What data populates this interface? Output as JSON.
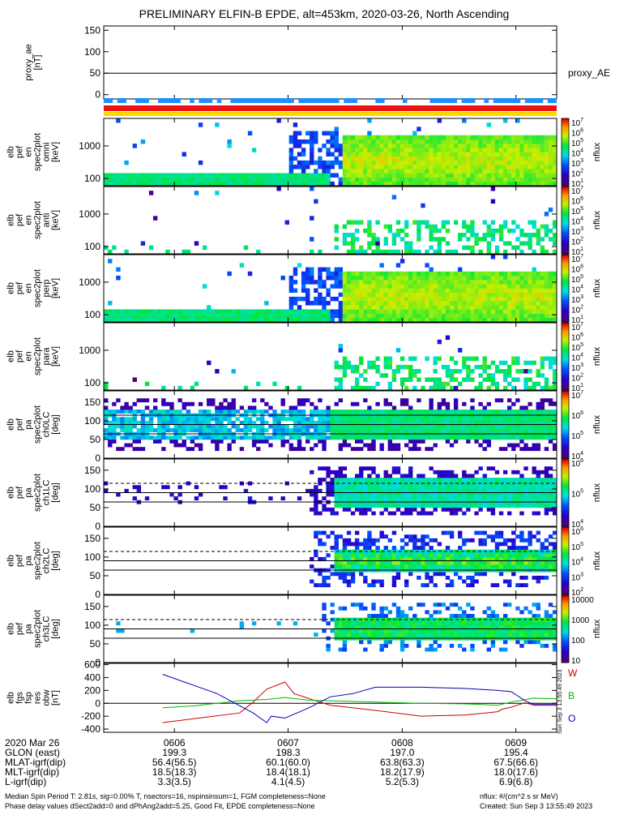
{
  "title": "PRELIMINARY ELFIN-B EPDE, alt=453km, 2020-03-26, North Ascending",
  "colors": {
    "blue_bar": "#1e90ff",
    "red_bar": "#ee1111",
    "yellow_bar": "#ffd700"
  },
  "chart_data": [
    {
      "id": "proxy_ae",
      "type": "line",
      "ylabel_lines": [
        "proxy_ae",
        "[nT]"
      ],
      "ylim": [
        -10,
        160
      ],
      "yticks": [
        "150",
        "100",
        "50",
        "0"
      ],
      "ytick_values": [
        150,
        100,
        50,
        0
      ],
      "refline": 50,
      "legend": "proxy_AE",
      "series": [
        {
          "name": "proxy_AE",
          "x": [
            0,
            1
          ],
          "y": [
            50,
            50
          ]
        }
      ]
    },
    {
      "id": "en_full",
      "type": "heatmap",
      "ylabel_lines": [
        "elb",
        "pef",
        "en",
        "spec2plot",
        "omni",
        "[keV]"
      ],
      "yscale": "log",
      "ylim": [
        60,
        7000
      ],
      "yticks": [
        "1000",
        "100"
      ],
      "ytick_values": [
        1000,
        100
      ],
      "cbar": {
        "label": "nflux",
        "scale": "log",
        "ticks": [
          "10",
          "10",
          "10",
          "10",
          "10",
          "10",
          "10"
        ],
        "exps": [
          "7",
          "6",
          "5",
          "4",
          "3",
          "2",
          "1"
        ]
      },
      "pattern": "strong"
    },
    {
      "id": "en_anti",
      "type": "heatmap",
      "ylabel_lines": [
        "elb",
        "pef",
        "en",
        "spec2plot",
        "anti",
        "[keV]"
      ],
      "yscale": "log",
      "ylim": [
        60,
        7000
      ],
      "yticks": [
        "1000",
        "100"
      ],
      "ytick_values": [
        1000,
        100
      ],
      "cbar": {
        "label": "nflux",
        "scale": "log",
        "ticks": [
          "10",
          "10",
          "10",
          "10",
          "10",
          "10",
          "10"
        ],
        "exps": [
          "7",
          "6",
          "5",
          "4",
          "3",
          "2",
          "1"
        ]
      },
      "pattern": "sparse"
    },
    {
      "id": "en_perp",
      "type": "heatmap",
      "ylabel_lines": [
        "elb",
        "pef",
        "en",
        "spec2plot",
        "perp",
        "[keV]"
      ],
      "yscale": "log",
      "ylim": [
        60,
        7000
      ],
      "yticks": [
        "1000",
        "100"
      ],
      "ytick_values": [
        1000,
        100
      ],
      "cbar": {
        "label": "nflux",
        "scale": "log",
        "ticks": [
          "10",
          "10",
          "10",
          "10",
          "10",
          "10",
          "10"
        ],
        "exps": [
          "7",
          "6",
          "5",
          "4",
          "3",
          "2",
          "1"
        ]
      },
      "pattern": "strong"
    },
    {
      "id": "en_para",
      "type": "heatmap",
      "ylabel_lines": [
        "elb",
        "pef",
        "en",
        "spec2plot",
        "para",
        "[keV]"
      ],
      "yscale": "log",
      "ylim": [
        60,
        7000
      ],
      "yticks": [
        "1000",
        "100"
      ],
      "ytick_values": [
        1000,
        100
      ],
      "cbar": {
        "label": "nflux",
        "scale": "log",
        "ticks": [
          "10",
          "10",
          "10",
          "10",
          "10",
          "10",
          "10"
        ],
        "exps": [
          "7",
          "6",
          "5",
          "4",
          "3",
          "2",
          "1"
        ]
      },
      "pattern": "sparse"
    },
    {
      "id": "pa_ch0",
      "type": "heatmap",
      "ylabel_lines": [
        "elb",
        "pef",
        "pa",
        "spec2plot",
        "ch0LC",
        "[deg]"
      ],
      "ylim": [
        0,
        180
      ],
      "yticks": [
        "150",
        "100",
        "50",
        "0"
      ],
      "ytick_values": [
        150,
        100,
        50,
        0
      ],
      "cbar": {
        "label": "nflux",
        "scale": "log",
        "ticks": [
          "10",
          "10",
          "10",
          "10"
        ],
        "exps": [
          "7",
          "6",
          "5",
          "4"
        ]
      },
      "lines": [
        {
          "y": 90,
          "style": "solid"
        },
        {
          "y": 65,
          "style": "solid"
        },
        {
          "y": 115,
          "style": "solid"
        }
      ],
      "pattern": "pa0"
    },
    {
      "id": "pa_ch1",
      "type": "heatmap",
      "ylabel_lines": [
        "elb",
        "pef",
        "pa",
        "spec2plot",
        "ch1LC",
        "[deg]"
      ],
      "ylim": [
        0,
        180
      ],
      "yticks": [
        "150",
        "100",
        "50",
        "0"
      ],
      "ytick_values": [
        150,
        100,
        50,
        0
      ],
      "cbar": {
        "label": "nflux",
        "scale": "log",
        "ticks": [
          "10",
          "10",
          "10"
        ],
        "exps": [
          "6",
          "5",
          "4"
        ]
      },
      "lines": [
        {
          "y": 90,
          "style": "solid"
        },
        {
          "y": 65,
          "style": "solid"
        },
        {
          "y": 115,
          "style": "dashed"
        }
      ],
      "pattern": "pa1"
    },
    {
      "id": "pa_ch2",
      "type": "heatmap",
      "ylabel_lines": [
        "elb",
        "pef",
        "pa",
        "spec2plot",
        "ch2LC",
        "[deg]"
      ],
      "ylim": [
        0,
        180
      ],
      "yticks": [
        "150",
        "100",
        "50",
        "0"
      ],
      "ytick_values": [
        150,
        100,
        50,
        0
      ],
      "cbar": {
        "label": "nflux",
        "scale": "log",
        "ticks": [
          "10",
          "10",
          "10",
          "10",
          "10"
        ],
        "exps": [
          "6",
          "5",
          "4",
          "3",
          "2"
        ]
      },
      "lines": [
        {
          "y": 90,
          "style": "solid"
        },
        {
          "y": 65,
          "style": "solid"
        },
        {
          "y": 115,
          "style": "dashed"
        }
      ],
      "pattern": "pa2"
    },
    {
      "id": "pa_ch3",
      "type": "heatmap",
      "ylabel_lines": [
        "elb",
        "pef",
        "pa",
        "spec2plot",
        "ch3LC",
        "[deg]"
      ],
      "ylim": [
        0,
        180
      ],
      "yticks": [
        "150",
        "100",
        "50",
        "0"
      ],
      "ytick_values": [
        150,
        100,
        50,
        0
      ],
      "cbar": {
        "label": "nflux",
        "scale": "linear-labels",
        "ticks": [
          "10000",
          "1000",
          "100",
          "10"
        ],
        "exps": [
          "",
          "",
          "",
          ""
        ]
      },
      "lines": [
        {
          "y": 90,
          "style": "solid"
        },
        {
          "y": 65,
          "style": "solid"
        },
        {
          "y": 115,
          "style": "dashed"
        }
      ],
      "pattern": "pa3"
    },
    {
      "id": "fgs",
      "type": "line",
      "ylabel_lines": [
        "elb",
        "fgs",
        "fsp",
        "res",
        "obw",
        "[nT]"
      ],
      "ylim": [
        -450,
        620
      ],
      "yticks": [
        "600",
        "400",
        "200",
        "0",
        "-200",
        "-400"
      ],
      "ytick_values": [
        600,
        400,
        200,
        0,
        -200,
        -400
      ],
      "refline": 0,
      "series": [
        {
          "name": "W",
          "color": "#d00000",
          "x": [
            0.13,
            0.3,
            0.33,
            0.36,
            0.4,
            0.42,
            0.45,
            0.5,
            0.6,
            0.7,
            0.8,
            0.87,
            0.88,
            0.9,
            0.93,
            0.95,
            1.0
          ],
          "y": [
            -300,
            -150,
            20,
            220,
            330,
            150,
            80,
            -30,
            -110,
            -200,
            -180,
            -130,
            -90,
            -60,
            10,
            -30,
            -30
          ]
        },
        {
          "name": "B",
          "color": "#00bb00",
          "x": [
            0.13,
            0.2,
            0.3,
            0.36,
            0.4,
            0.45,
            0.5,
            0.6,
            0.7,
            0.8,
            0.87,
            0.9,
            0.95,
            1.0
          ],
          "y": [
            -70,
            -40,
            40,
            60,
            90,
            50,
            40,
            20,
            0,
            -10,
            -30,
            20,
            80,
            70
          ]
        },
        {
          "name": "O",
          "color": "#0000c0",
          "x": [
            0.13,
            0.25,
            0.33,
            0.36,
            0.37,
            0.4,
            0.45,
            0.5,
            0.55,
            0.6,
            0.7,
            0.8,
            0.87,
            0.9,
            0.93,
            0.95,
            1.0
          ],
          "y": [
            450,
            150,
            -150,
            -300,
            -200,
            -230,
            -80,
            100,
            150,
            250,
            250,
            230,
            200,
            180,
            40,
            -20,
            -20
          ]
        }
      ]
    }
  ],
  "x_axis": {
    "ticks": [
      "0606",
      "0607",
      "0608",
      "0609"
    ],
    "tick_fracs": [
      0.156,
      0.407,
      0.659,
      0.91
    ],
    "rows": [
      {
        "label": "2020 Mar 26",
        "values": [
          "0606",
          "0607",
          "0608",
          "0609"
        ]
      },
      {
        "label": "GLON (east)",
        "values": [
          "199.3",
          "198.3",
          "197.0",
          "195.4"
        ]
      },
      {
        "label": "MLAT-igrf(dip)",
        "values": [
          "56.4(56.5)",
          "60.1(60.0)",
          "63.8(63.3)",
          "67.5(66.6)"
        ]
      },
      {
        "label": "MLT-igrf(dip)",
        "values": [
          "18.5(18.3)",
          "18.4(18.1)",
          "18.2(17.9)",
          "18.0(17.6)"
        ]
      },
      {
        "label": "L-igrf(dip)",
        "values": [
          "3.3(3.5)",
          "4.1(4.5)",
          "5.2(5.3)",
          "6.9(6.8)"
        ]
      }
    ]
  },
  "footer": {
    "line1": "Median Spin Period T: 2.81s, sig=0.00% T, nsectors=16, nspinsinsum=1, FGM completeness=None",
    "line2": "Phase delay values dSect2add=0 and dPhAng2add=5.25, Good Fit, EPDE completeness=None",
    "units": "nflux: #/(cm^2 s sr MeV)",
    "created": "Created: Sun Sep  3 13:55:49 2023"
  },
  "vertical_stamp": "Sun Sep  3 13:55:49 2023"
}
